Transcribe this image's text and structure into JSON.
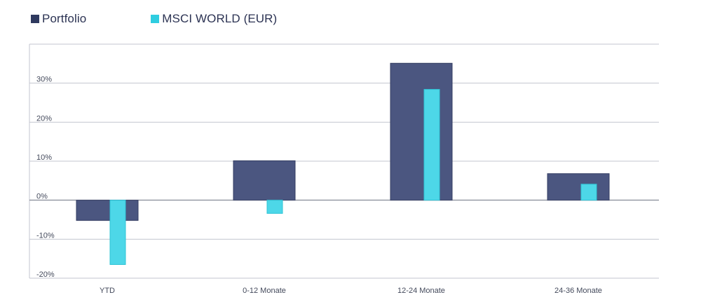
{
  "legend": {
    "items": [
      {
        "label": "Portfolio",
        "color": "#4b5680"
      },
      {
        "label": "MSCI WORLD (EUR)",
        "color": "#4dd7e8"
      }
    ]
  },
  "chart_data": {
    "type": "bar",
    "categories": [
      "YTD",
      "0-12 Monate",
      "12-24 Monate",
      "24-36 Monate"
    ],
    "series": [
      {
        "name": "Portfolio",
        "values": [
          -5.2,
          10.1,
          35.1,
          6.8
        ],
        "color": "#4b5680"
      },
      {
        "name": "MSCI WORLD (EUR)",
        "values": [
          -16.5,
          -3.4,
          28.4,
          4.1
        ],
        "color": "#4dd7e8"
      }
    ],
    "y_ticks": [
      -20,
      -10,
      0,
      10,
      20,
      30
    ],
    "y_tick_labels": [
      "-20%",
      "-10%",
      "0%",
      "10%",
      "20%",
      "30%"
    ],
    "ylim": [
      -20,
      40
    ],
    "title": "",
    "xlabel": "",
    "ylabel": "",
    "grid": true,
    "legend_position": "top-left"
  }
}
